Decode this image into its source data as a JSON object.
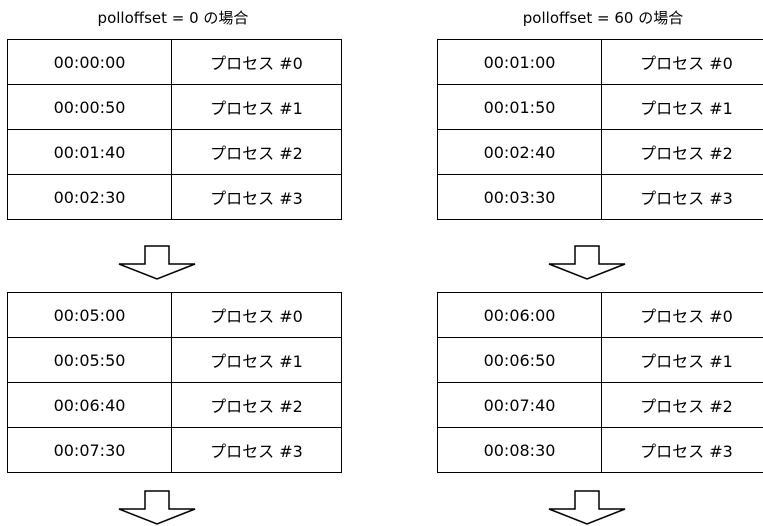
{
  "left": {
    "caption": "polloffset = 0 の場合",
    "before": [
      {
        "time": "00:00:00",
        "process": "プロセス #0"
      },
      {
        "time": "00:00:50",
        "process": "プロセス #1"
      },
      {
        "time": "00:01:40",
        "process": "プロセス #2"
      },
      {
        "time": "00:02:30",
        "process": "プロセス #3"
      }
    ],
    "after": [
      {
        "time": "00:05:00",
        "process": "プロセス #0"
      },
      {
        "time": "00:05:50",
        "process": "プロセス #1"
      },
      {
        "time": "00:06:40",
        "process": "プロセス #2"
      },
      {
        "time": "00:07:30",
        "process": "プロセス #3"
      }
    ]
  },
  "right": {
    "caption": "polloffset = 60 の場合",
    "before": [
      {
        "time": "00:01:00",
        "process": "プロセス #0"
      },
      {
        "time": "00:01:50",
        "process": "プロセス #1"
      },
      {
        "time": "00:02:40",
        "process": "プロセス #2"
      },
      {
        "time": "00:03:30",
        "process": "プロセス #3"
      }
    ],
    "after": [
      {
        "time": "00:06:00",
        "process": "プロセス #0"
      },
      {
        "time": "00:06:50",
        "process": "プロセス #1"
      },
      {
        "time": "00:07:40",
        "process": "プロセス #2"
      },
      {
        "time": "00:08:30",
        "process": "プロセス #3"
      }
    ]
  }
}
